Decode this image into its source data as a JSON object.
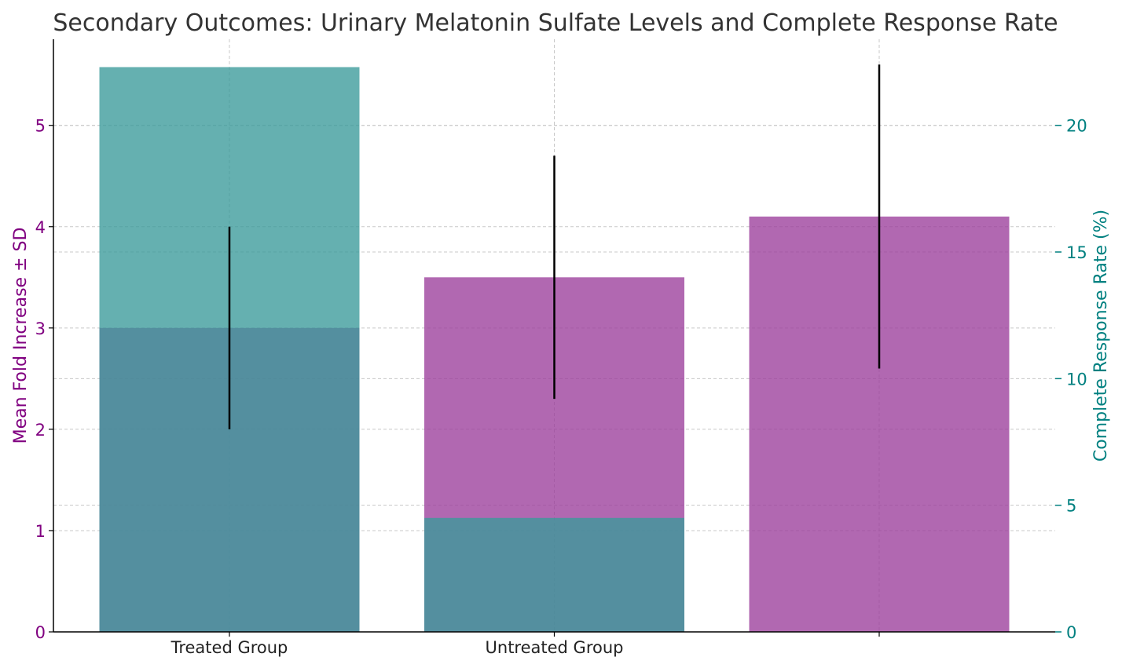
{
  "chart_data": {
    "type": "bar",
    "title": "Secondary Outcomes: Urinary Melatonin Sulfate Levels and Complete Response Rate",
    "categories": [
      "Treated Group",
      "Untreated Group",
      ""
    ],
    "ylabel_left": "Mean Fold Increase ± SD",
    "ylabel_right": "Complete Response Rate (%)",
    "ylim_left": [
      0,
      5.85
    ],
    "ylim_right": [
      0,
      23.4
    ],
    "yticks_left": [
      0,
      1,
      2,
      3,
      4,
      5
    ],
    "yticks_right": [
      0,
      5,
      10,
      15,
      20
    ],
    "grid": true,
    "left_color": "#800080",
    "right_color": "#008080",
    "series": [
      {
        "name": "",
        "axis": "left",
        "color": "#9b3d9b",
        "values": [
          3.0,
          3.5,
          4.1
        ],
        "errors": [
          1.0,
          1.2,
          1.5
        ]
      },
      {
        "name": "",
        "axis": "right",
        "color": "#3a9a9a",
        "values": [
          22.3,
          4.5,
          0
        ],
        "errors": [
          0,
          0,
          0
        ]
      }
    ]
  }
}
